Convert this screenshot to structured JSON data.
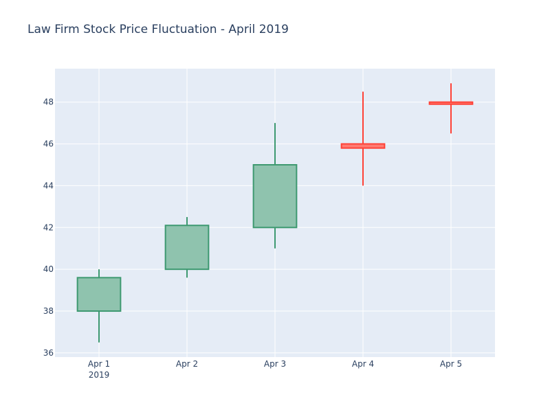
{
  "chart_data": {
    "type": "candlestick",
    "title": "Law Firm Stock Price Fluctuation - April 2019",
    "xlabel": "",
    "ylabel": "",
    "categories": [
      "Apr 1",
      "Apr 2",
      "Apr 3",
      "Apr 4",
      "Apr 5"
    ],
    "x_year_label": "2019",
    "ohlc": [
      {
        "date": "Apr 1",
        "open": 38.0,
        "high": 40.0,
        "low": 36.5,
        "close": 39.6
      },
      {
        "date": "Apr 2",
        "open": 40.0,
        "high": 42.5,
        "low": 39.6,
        "close": 42.1
      },
      {
        "date": "Apr 3",
        "open": 42.0,
        "high": 47.0,
        "low": 41.0,
        "close": 45.0
      },
      {
        "date": "Apr 4",
        "open": 46.0,
        "high": 48.5,
        "low": 44.0,
        "close": 45.8
      },
      {
        "date": "Apr 5",
        "open": 48.0,
        "high": 48.9,
        "low": 46.5,
        "close": 47.9
      }
    ],
    "ylim": [
      35.8,
      49.6
    ],
    "yticks": [
      36,
      38,
      40,
      42,
      44,
      46,
      48
    ],
    "grid": true,
    "legend": false,
    "colors": {
      "increasing_line": "#3d9970",
      "increasing_fill": "#8fc3ae",
      "decreasing_line": "#ff4136",
      "decreasing_fill": "#ff7b72",
      "plot_bg": "#e5ecf6",
      "grid": "#ffffff",
      "text": "#2a3f5f"
    }
  }
}
